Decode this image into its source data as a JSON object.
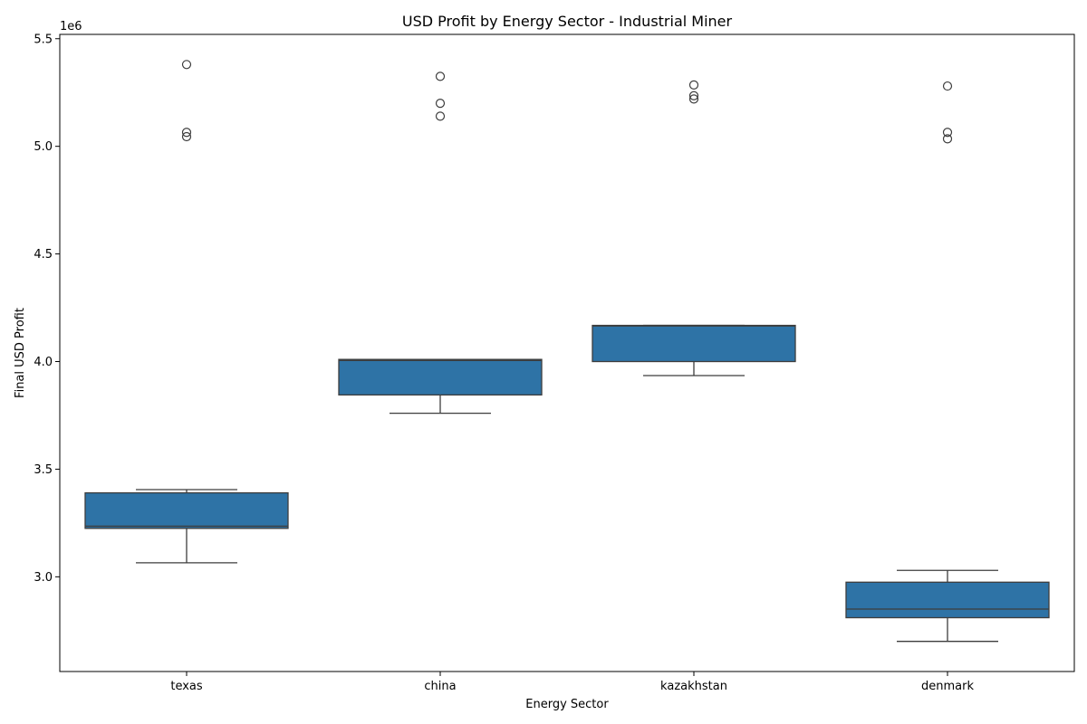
{
  "chart_data": {
    "type": "box",
    "title": "USD Profit by Energy Sector - Industrial Miner",
    "xlabel": "Energy Sector",
    "ylabel": "Final USD Profit",
    "y_multiplier_label": "1e6",
    "ylim": [
      2.56,
      5.52
    ],
    "y_ticks": [
      3.0,
      3.5,
      4.0,
      4.5,
      5.0,
      5.5
    ],
    "y_tick_labels": [
      "3.0",
      "3.5",
      "4.0",
      "4.5",
      "5.0",
      "5.5"
    ],
    "categories": [
      "texas",
      "china",
      "kazakhstan",
      "denmark"
    ],
    "boxes": [
      {
        "category": "texas",
        "whisker_low": 3.065,
        "q1": 3.225,
        "median": 3.235,
        "q3": 3.39,
        "whisker_high": 3.405,
        "outliers": [
          5.38,
          5.065,
          5.045
        ]
      },
      {
        "category": "china",
        "whisker_low": 3.76,
        "q1": 3.845,
        "median": 4.005,
        "q3": 4.01,
        "whisker_high": 4.01,
        "outliers": [
          5.325,
          5.2,
          5.14
        ]
      },
      {
        "category": "kazakhstan",
        "whisker_low": 3.935,
        "q1": 4.0,
        "median": 4.165,
        "q3": 4.168,
        "whisker_high": 4.168,
        "outliers": [
          5.285,
          5.235,
          5.22
        ]
      },
      {
        "category": "denmark",
        "whisker_low": 2.7,
        "q1": 2.81,
        "median": 2.85,
        "q3": 2.975,
        "whisker_high": 3.03,
        "outliers": [
          5.28,
          5.065,
          5.035
        ]
      }
    ],
    "box_color": "#2e73a6",
    "line_color": "#3d3d3d",
    "grid": false,
    "legend": "none"
  }
}
